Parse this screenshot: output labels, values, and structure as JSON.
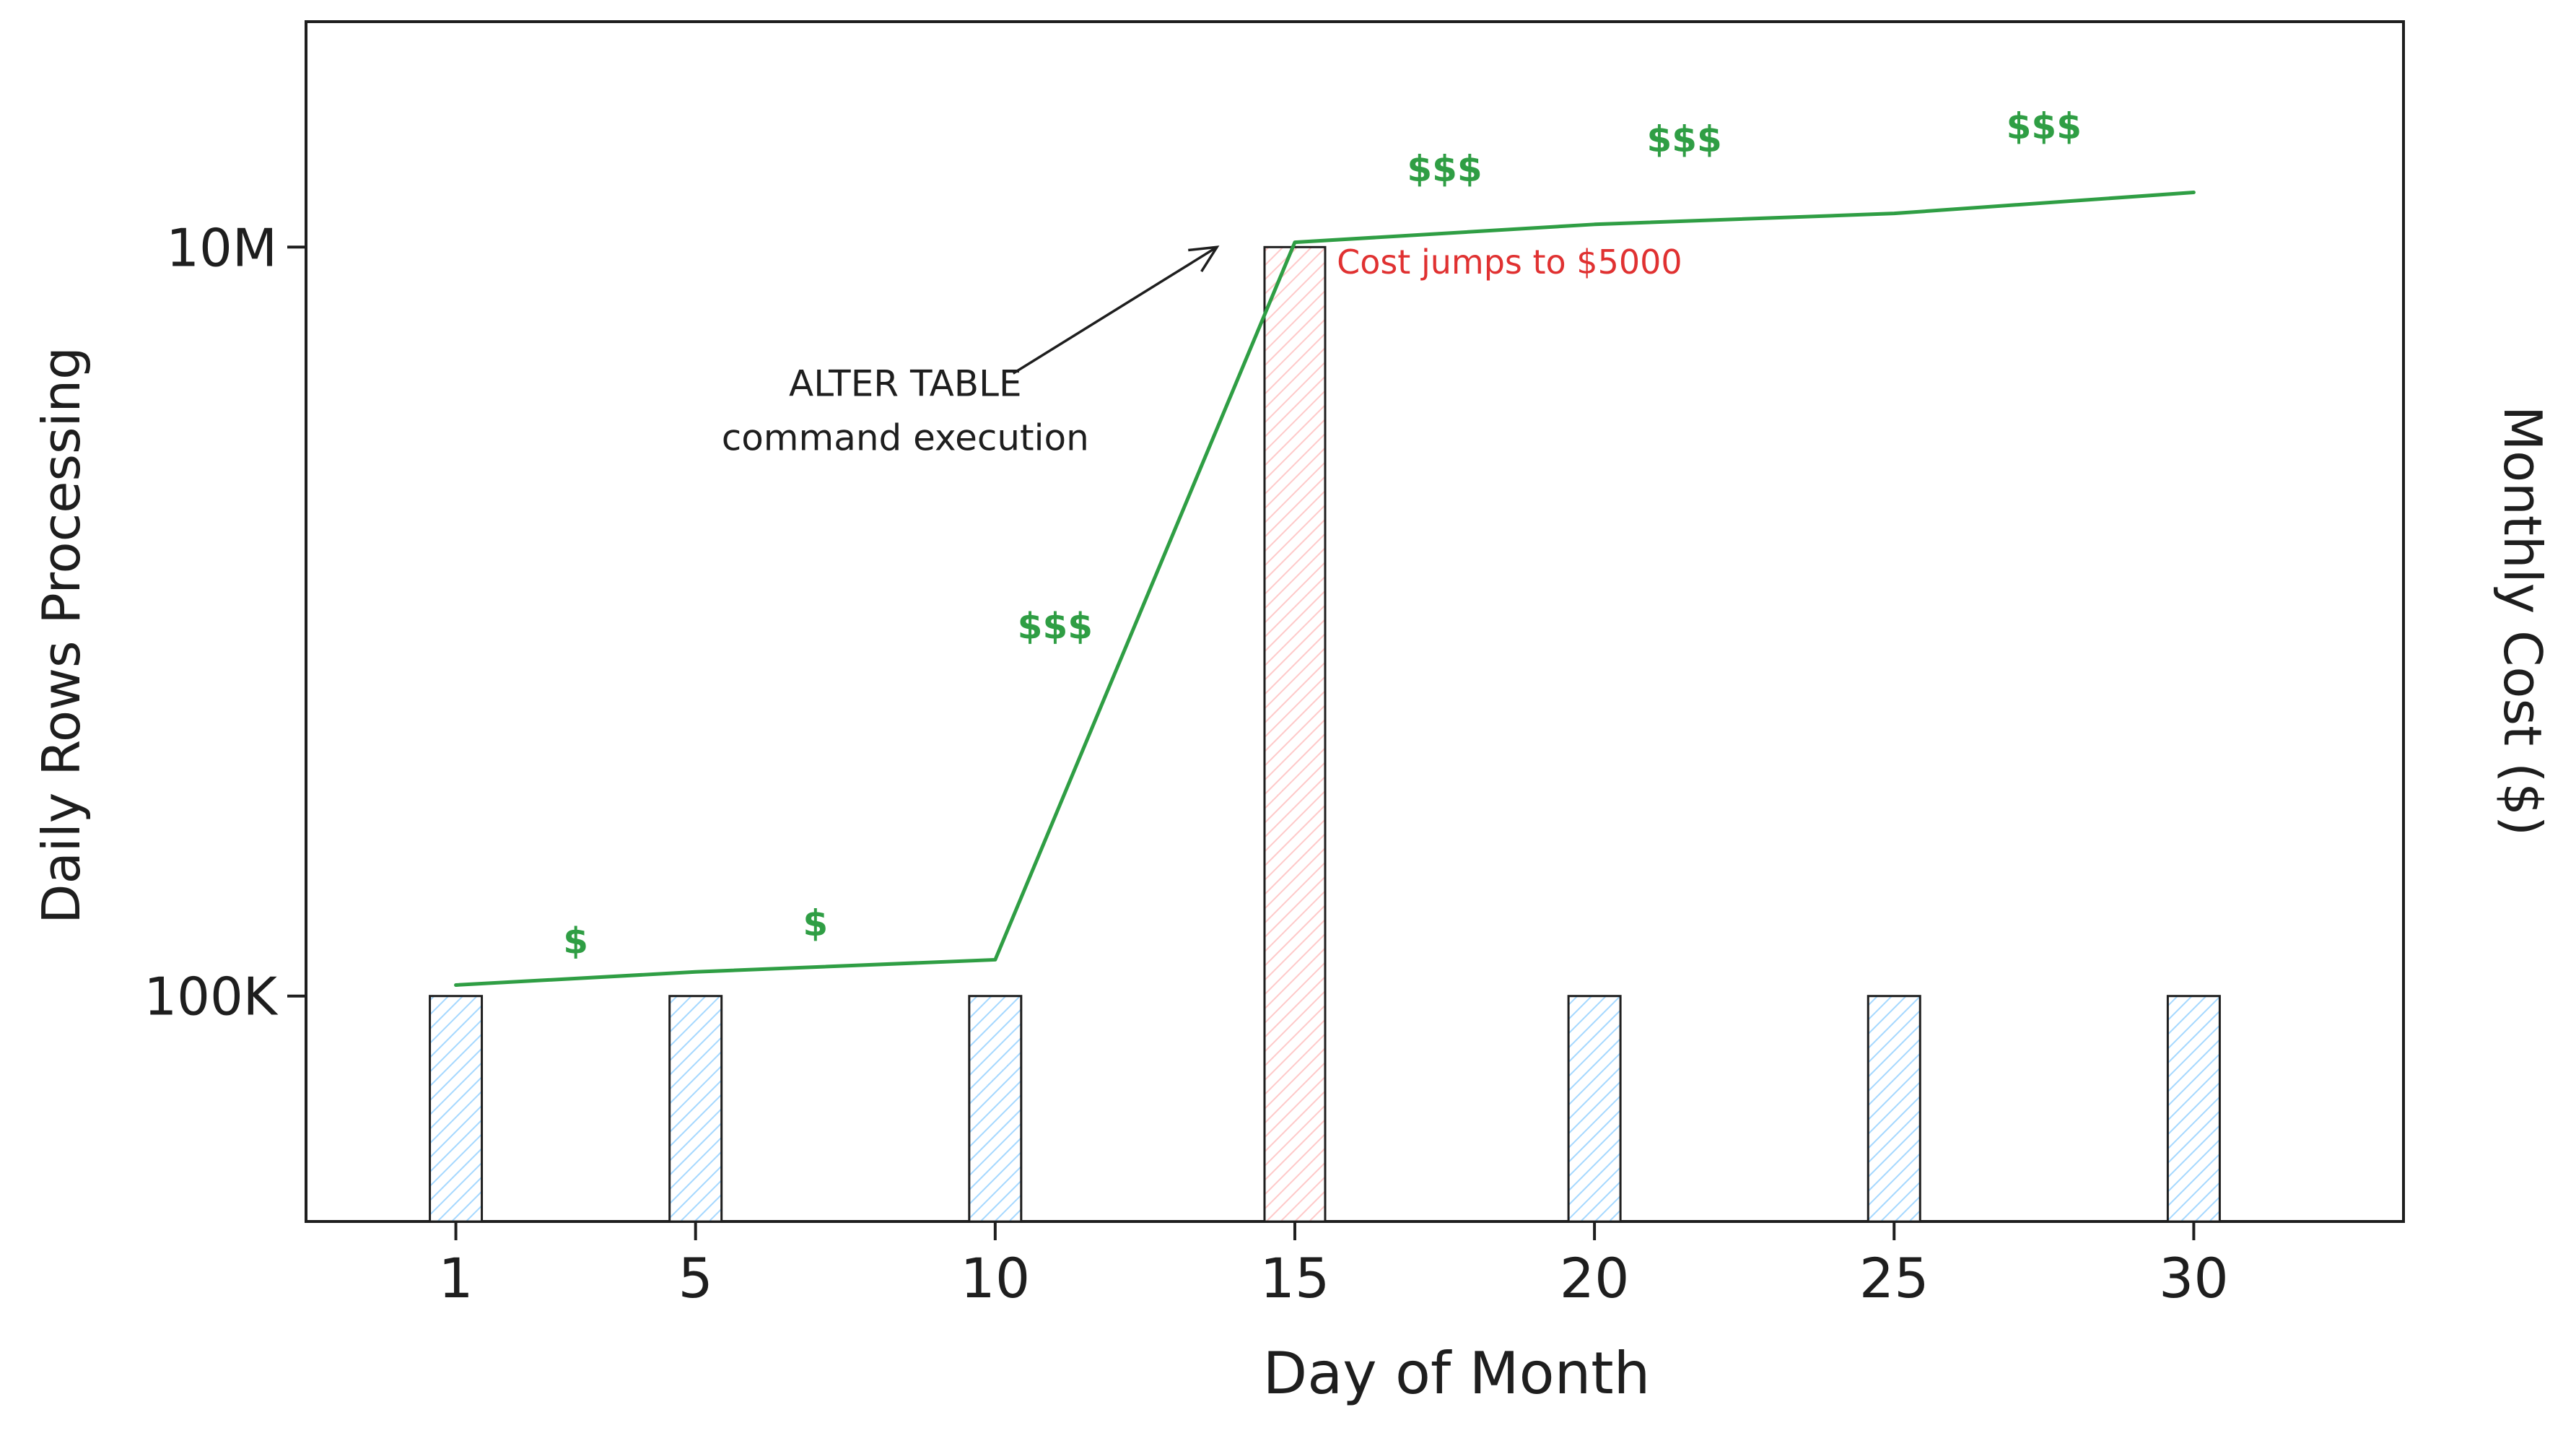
{
  "chart_data": {
    "type": "bar",
    "xlabel": "Day of Month",
    "ylabel": "Daily Rows Processing",
    "y2label": "Monthly Cost ($)",
    "yscale": "log",
    "ylim": [
      25000,
      40000000
    ],
    "yticks": [
      {
        "value": 100000,
        "label": "100K"
      },
      {
        "value": 10000000,
        "label": "10M"
      }
    ],
    "xlim": [
      -1.5,
      33.5
    ],
    "xticks": [
      1,
      5,
      10,
      15,
      20,
      25,
      30
    ],
    "grid": false,
    "series": [
      {
        "type": "bar",
        "points": [
          {
            "x": 1,
            "y": 100000,
            "highlight": false
          },
          {
            "x": 5,
            "y": 100000,
            "highlight": false
          },
          {
            "x": 10,
            "y": 100000,
            "highlight": false
          },
          {
            "x": 15,
            "y": 10000000,
            "highlight": true
          },
          {
            "x": 20,
            "y": 100000,
            "highlight": false
          },
          {
            "x": 25,
            "y": 100000,
            "highlight": false
          },
          {
            "x": 30,
            "y": 100000,
            "highlight": false
          }
        ]
      },
      {
        "type": "line",
        "color": "#2f9e44",
        "points": [
          {
            "x": 1,
            "y": 107000
          },
          {
            "x": 5,
            "y": 116000
          },
          {
            "x": 10,
            "y": 125000
          },
          {
            "x": 15,
            "y": 10300000
          },
          {
            "x": 20,
            "y": 11500000
          },
          {
            "x": 25,
            "y": 12300000
          },
          {
            "x": 30,
            "y": 14000000
          }
        ]
      }
    ],
    "cost_labels": [
      {
        "text": "$",
        "x": 3,
        "y": 130000
      },
      {
        "text": "$",
        "x": 7,
        "y": 145000
      },
      {
        "text": "$$$",
        "x": 11,
        "y": 900000
      },
      {
        "text": "$$$",
        "x": 17.5,
        "y": 15000000
      },
      {
        "text": "$$$",
        "x": 21.5,
        "y": 18000000
      },
      {
        "text": "$$$",
        "x": 27.5,
        "y": 19500000
      }
    ],
    "annotations": [
      {
        "text": "Cost jumps to $5000",
        "x": 15.7,
        "y": 8500000,
        "color": "#e03131"
      },
      {
        "lines": [
          "ALTER TABLE",
          "command execution"
        ],
        "x": 8.5,
        "y": 4000000,
        "arrow_to": {
          "x": 13.7,
          "y": 10000000
        },
        "arrow_from": {
          "x": 10.3,
          "y": 4600000
        }
      }
    ],
    "colors": {
      "bar_fill": "#a5d8ff",
      "bar_highlight_fill": "#ffc9c9",
      "bar_stroke": "#1e1e1e",
      "line": "#2f9e44",
      "dollar": "#2f9e44",
      "callout": "#e03131",
      "axis": "#1e1e1e"
    }
  }
}
